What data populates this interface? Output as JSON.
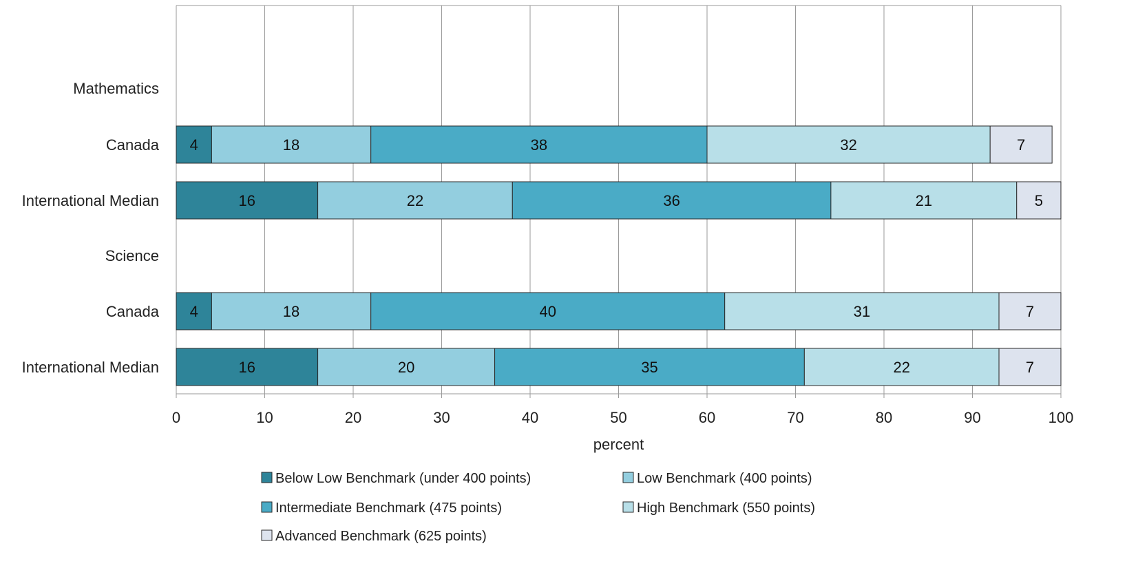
{
  "chart_data": {
    "type": "bar",
    "orientation": "horizontal",
    "stacked": true,
    "xlabel": "percent",
    "xlim": [
      0,
      100
    ],
    "xticks": [
      0,
      10,
      20,
      30,
      40,
      50,
      60,
      70,
      80,
      90,
      100
    ],
    "grid": true,
    "legend_position": "bottom",
    "categories": [
      "Mathematics",
      "Canada",
      "International Median",
      "Science",
      "Canada",
      "International Median"
    ],
    "series": [
      {
        "name": "Below Low Benchmark (under 400 points)",
        "color": "#2E8499",
        "values": [
          null,
          4,
          16,
          null,
          4,
          16
        ]
      },
      {
        "name": "Low Benchmark (400 points)",
        "color": "#93CEDF",
        "values": [
          null,
          18,
          22,
          null,
          18,
          20
        ]
      },
      {
        "name": "Intermediate Benchmark (475 points)",
        "color": "#4AABC6",
        "values": [
          null,
          38,
          36,
          null,
          40,
          35
        ]
      },
      {
        "name": "High Benchmark (550 points)",
        "color": "#B8DFE8",
        "values": [
          null,
          32,
          21,
          null,
          31,
          22
        ]
      },
      {
        "name": "Advanced Benchmark (625 points)",
        "color": "#DDE3EE",
        "values": [
          null,
          7,
          5,
          null,
          7,
          7
        ]
      }
    ]
  }
}
